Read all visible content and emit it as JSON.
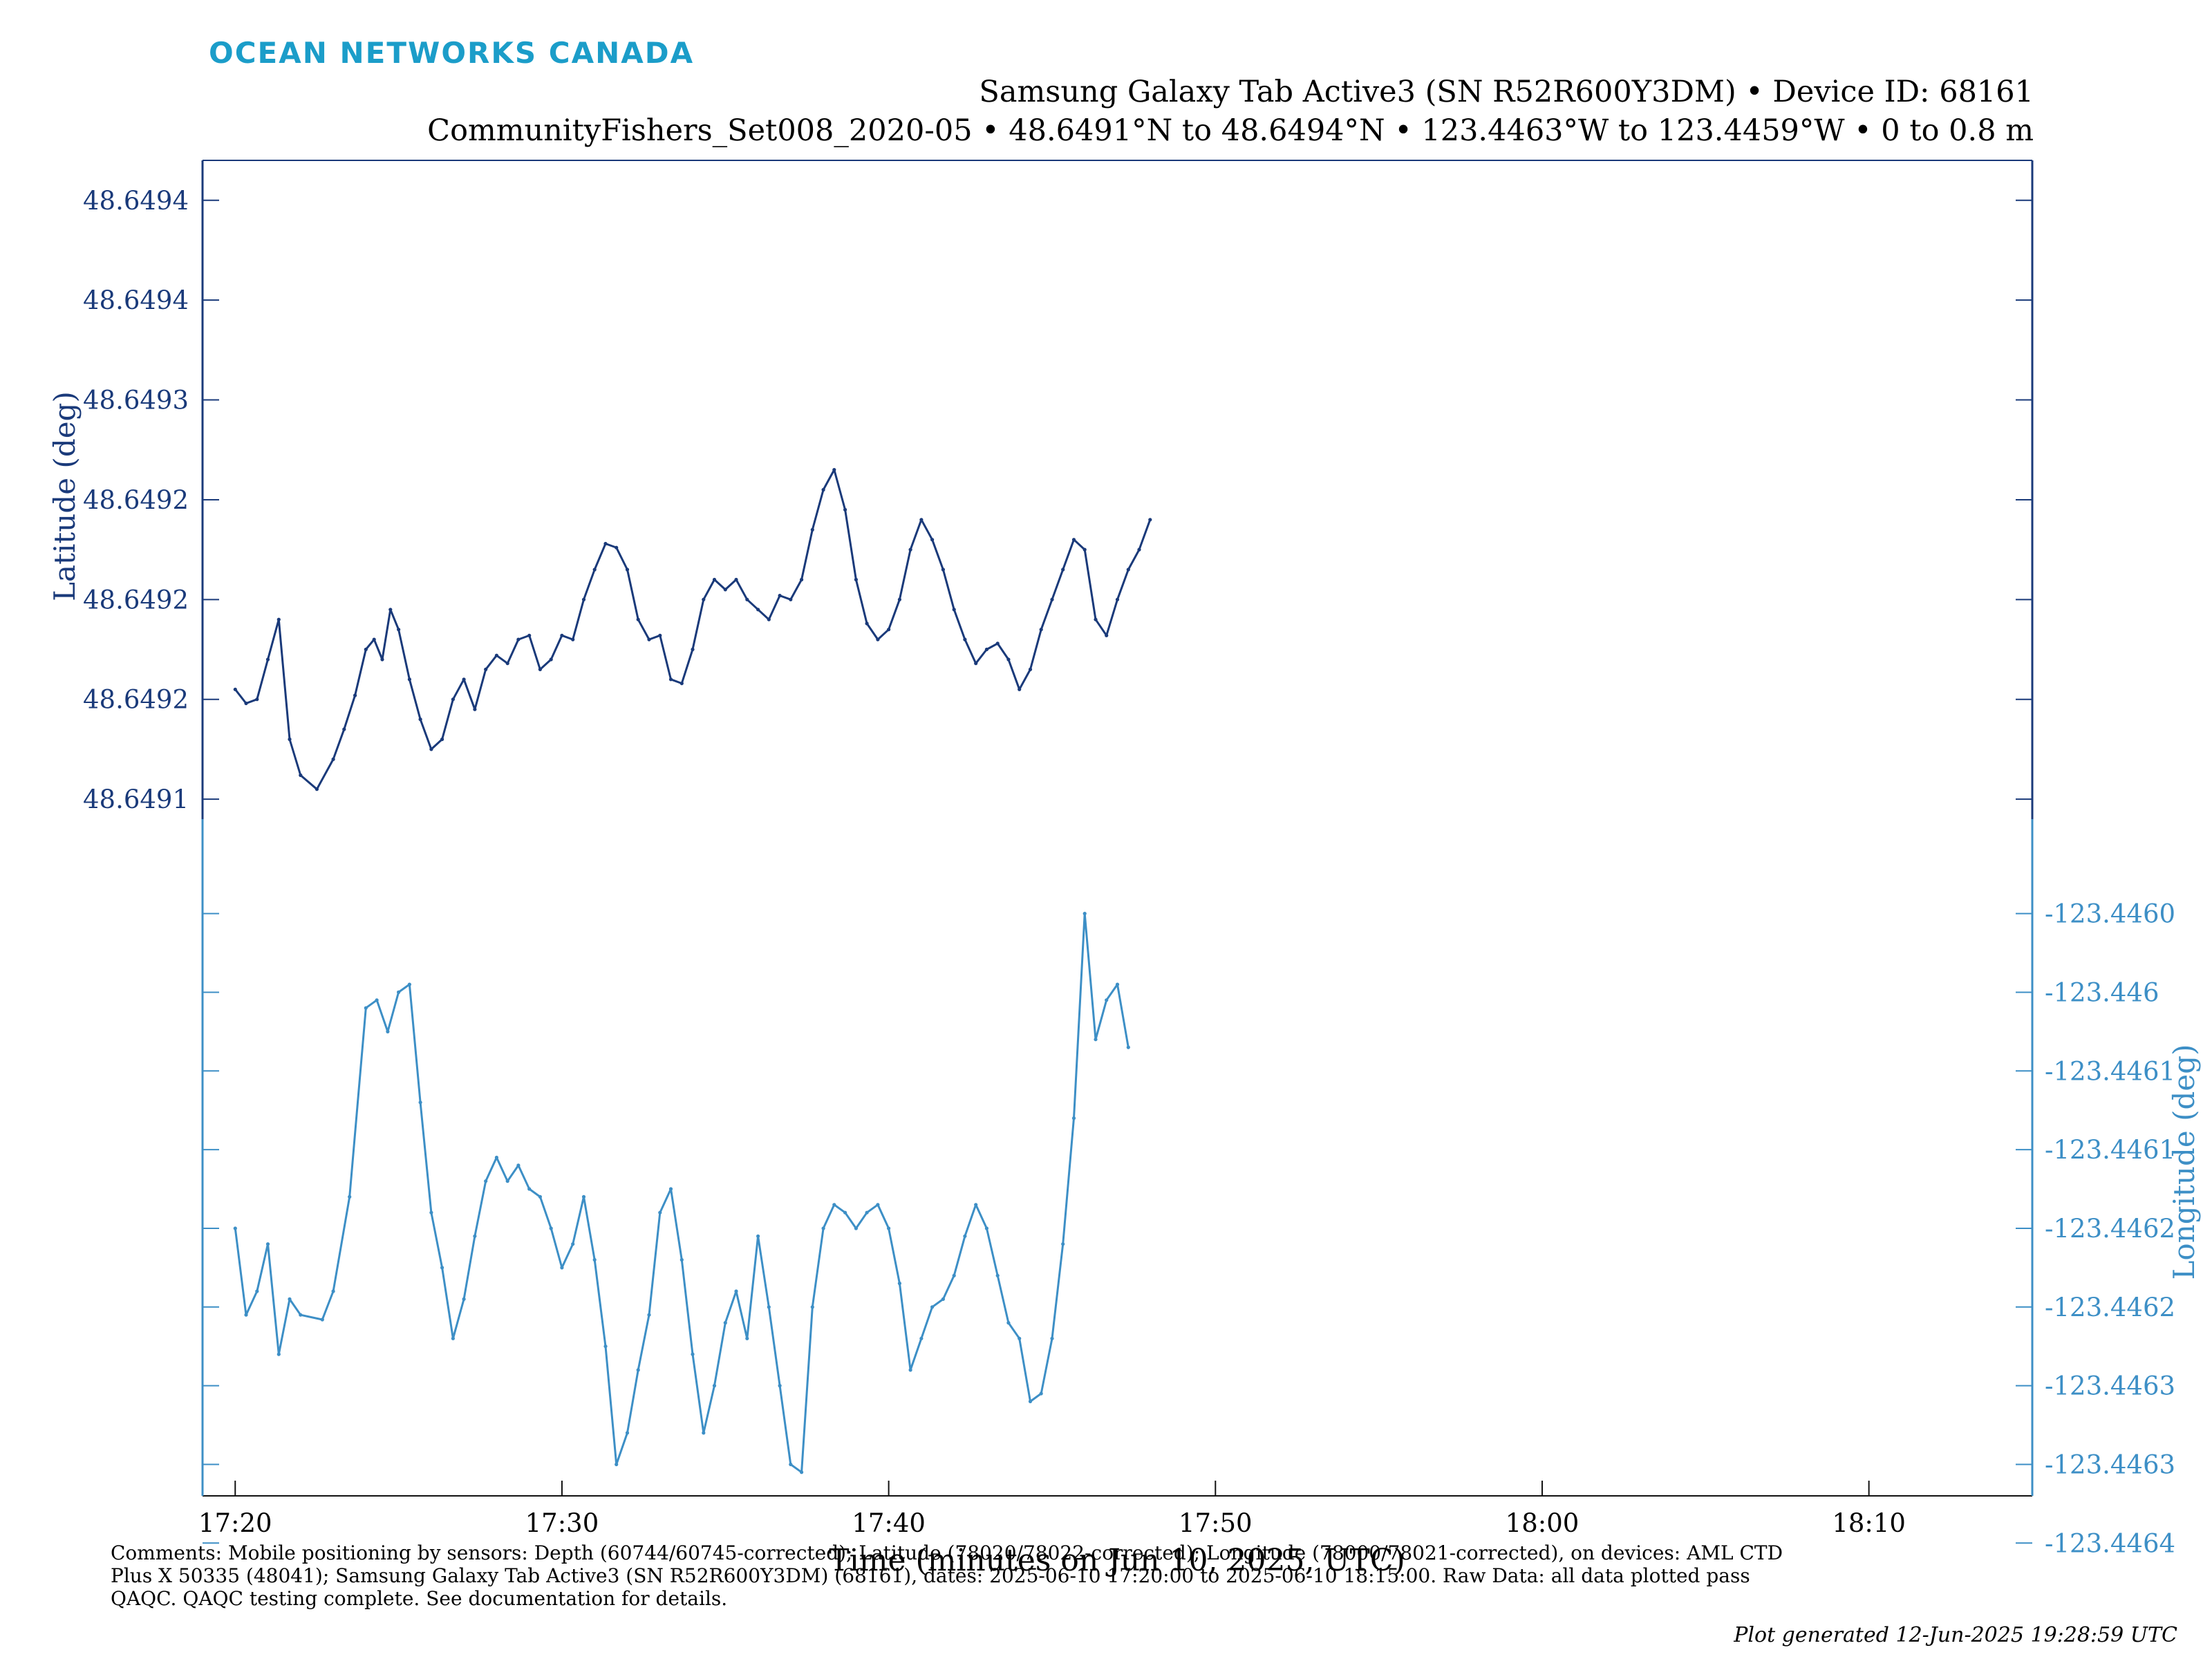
{
  "header": {
    "brand": "OCEAN NETWORKS CANADA",
    "title_line1": "Samsung Galaxy Tab Active3 (SN R52R600Y3DM) • Device ID: 68161",
    "title_line2": "CommunityFishers_Set008_2020-05 • 48.6491°N to 48.6494°N • 123.4463°W to 123.4459°W • 0 to 0.8 m"
  },
  "footer": {
    "comments": "Comments: Mobile positioning by sensors: Depth (60744/60745-corrected); Latitude (78020/78022-corrected); Longitude (78000/78021-corrected), on devices: AML CTD Plus X 50335 (48041); Samsung Galaxy Tab Active3 (SN R52R600Y3DM) (68161), dates: 2025-06-10 17:20:00 to 2025-06-10 18:15:00. Raw Data: all data plotted pass QAQC. QAQC testing complete. See documentation for details.",
    "generated": "Plot generated 12-Jun-2025 19:28:59 UTC"
  },
  "colors": {
    "latitude": "#1a3a7a",
    "longitude": "#3d8fc6",
    "axis": "#111111"
  },
  "chart_data": {
    "type": "line",
    "xlabel": "Time (minutes on Jun 10, 2025, UTC)",
    "xlim": [
      "17:19:00",
      "18:15:00"
    ],
    "x_ticks": [
      {
        "label": "17:20",
        "t": "17:20:00"
      },
      {
        "label": "17:30",
        "t": "17:30:00"
      },
      {
        "label": "17:40",
        "t": "17:40:00"
      },
      {
        "label": "17:50",
        "t": "17:50:00"
      },
      {
        "label": "18:00",
        "t": "18:00:00"
      },
      {
        "label": "18:10",
        "t": "18:10:00"
      }
    ],
    "latitude": {
      "ylabel": "Latitude (deg)",
      "ylim": [
        48.64909,
        48.64942
      ],
      "y_ticks": [
        {
          "label": "48.6491",
          "v": 48.6491
        },
        {
          "label": "48.6492",
          "v": 48.64915
        },
        {
          "label": "48.6492",
          "v": 48.6492
        },
        {
          "label": "48.6492",
          "v": 48.64925
        },
        {
          "label": "48.6493",
          "v": 48.6493
        },
        {
          "label": "48.6494",
          "v": 48.64935
        },
        {
          "label": "48.6494",
          "v": 48.6494
        }
      ],
      "points": [
        [
          "17:20:00",
          48.649155
        ],
        [
          "17:20:20",
          48.649148
        ],
        [
          "17:20:40",
          48.64915
        ],
        [
          "17:21:00",
          48.64917
        ],
        [
          "17:21:20",
          48.64919
        ],
        [
          "17:21:40",
          48.64913
        ],
        [
          "17:22:00",
          48.649112
        ],
        [
          "17:22:30",
          48.649105
        ],
        [
          "17:23:00",
          48.64912
        ],
        [
          "17:23:20",
          48.649135
        ],
        [
          "17:23:40",
          48.649152
        ],
        [
          "17:24:00",
          48.649175
        ],
        [
          "17:24:15",
          48.64918
        ],
        [
          "17:24:30",
          48.64917
        ],
        [
          "17:24:45",
          48.649195
        ],
        [
          "17:25:00",
          48.649185
        ],
        [
          "17:25:20",
          48.64916
        ],
        [
          "17:25:40",
          48.64914
        ],
        [
          "17:26:00",
          48.649125
        ],
        [
          "17:26:20",
          48.64913
        ],
        [
          "17:26:40",
          48.64915
        ],
        [
          "17:27:00",
          48.64916
        ],
        [
          "17:27:20",
          48.649145
        ],
        [
          "17:27:40",
          48.649165
        ],
        [
          "17:28:00",
          48.649172
        ],
        [
          "17:28:20",
          48.649168
        ],
        [
          "17:28:40",
          48.64918
        ],
        [
          "17:29:00",
          48.649182
        ],
        [
          "17:29:20",
          48.649165
        ],
        [
          "17:29:40",
          48.64917
        ],
        [
          "17:30:00",
          48.649182
        ],
        [
          "17:30:20",
          48.64918
        ],
        [
          "17:30:40",
          48.6492
        ],
        [
          "17:31:00",
          48.649215
        ],
        [
          "17:31:20",
          48.649228
        ],
        [
          "17:31:40",
          48.649226
        ],
        [
          "17:32:00",
          48.649215
        ],
        [
          "17:32:20",
          48.64919
        ],
        [
          "17:32:40",
          48.64918
        ],
        [
          "17:33:00",
          48.649182
        ],
        [
          "17:33:20",
          48.64916
        ],
        [
          "17:33:40",
          48.649158
        ],
        [
          "17:34:00",
          48.649175
        ],
        [
          "17:34:20",
          48.6492
        ],
        [
          "17:34:40",
          48.64921
        ],
        [
          "17:35:00",
          48.649205
        ],
        [
          "17:35:20",
          48.64921
        ],
        [
          "17:35:40",
          48.6492
        ],
        [
          "17:36:00",
          48.649195
        ],
        [
          "17:36:20",
          48.64919
        ],
        [
          "17:36:40",
          48.649202
        ],
        [
          "17:37:00",
          48.6492
        ],
        [
          "17:37:20",
          48.64921
        ],
        [
          "17:37:40",
          48.649235
        ],
        [
          "17:38:00",
          48.649255
        ],
        [
          "17:38:20",
          48.649265
        ],
        [
          "17:38:40",
          48.649245
        ],
        [
          "17:39:00",
          48.64921
        ],
        [
          "17:39:20",
          48.649188
        ],
        [
          "17:39:40",
          48.64918
        ],
        [
          "17:40:00",
          48.649185
        ],
        [
          "17:40:20",
          48.6492
        ],
        [
          "17:40:40",
          48.649225
        ],
        [
          "17:41:00",
          48.64924
        ],
        [
          "17:41:20",
          48.64923
        ],
        [
          "17:41:40",
          48.649215
        ],
        [
          "17:42:00",
          48.649195
        ],
        [
          "17:42:20",
          48.64918
        ],
        [
          "17:42:40",
          48.649168
        ],
        [
          "17:43:00",
          48.649175
        ],
        [
          "17:43:20",
          48.649178
        ],
        [
          "17:43:40",
          48.64917
        ],
        [
          "17:44:00",
          48.649155
        ],
        [
          "17:44:20",
          48.649165
        ],
        [
          "17:44:40",
          48.649185
        ],
        [
          "17:45:00",
          48.6492
        ],
        [
          "17:45:20",
          48.649215
        ],
        [
          "17:45:40",
          48.64923
        ],
        [
          "17:46:00",
          48.649225
        ],
        [
          "17:46:20",
          48.64919
        ],
        [
          "17:46:40",
          48.649182
        ],
        [
          "17:47:00",
          48.6492
        ],
        [
          "17:47:20",
          48.649215
        ],
        [
          "17:47:40",
          48.649225
        ],
        [
          "17:48:00",
          48.64924
        ]
      ]
    },
    "longitude": {
      "ylabel": "Longitude (deg)",
      "ylim": [
        -123.44637,
        -123.44594
      ],
      "y_ticks": [
        {
          "label": "-123.4460",
          "v": -123.446
        },
        {
          "label": "-123.446",
          "v": -123.44605
        },
        {
          "label": "-123.4461",
          "v": -123.4461
        },
        {
          "label": "-123.4461",
          "v": -123.44615
        },
        {
          "label": "-123.4462",
          "v": -123.4462
        },
        {
          "label": "-123.4462",
          "v": -123.44625
        },
        {
          "label": "-123.4463",
          "v": -123.4463
        },
        {
          "label": "-123.4463",
          "v": -123.44635
        },
        {
          "label": "-123.4464",
          "v": -123.4464
        }
      ],
      "points": [
        [
          "17:20:00",
          -123.4462
        ],
        [
          "17:20:20",
          -123.446255
        ],
        [
          "17:20:40",
          -123.44624
        ],
        [
          "17:21:00",
          -123.44621
        ],
        [
          "17:21:20",
          -123.44628
        ],
        [
          "17:21:40",
          -123.446245
        ],
        [
          "17:22:00",
          -123.446255
        ],
        [
          "17:22:40",
          -123.446258
        ],
        [
          "17:23:00",
          -123.44624
        ],
        [
          "17:23:30",
          -123.44618
        ],
        [
          "17:24:00",
          -123.44606
        ],
        [
          "17:24:20",
          -123.446055
        ],
        [
          "17:24:40",
          -123.446075
        ],
        [
          "17:25:00",
          -123.44605
        ],
        [
          "17:25:20",
          -123.446045
        ],
        [
          "17:25:40",
          -123.44612
        ],
        [
          "17:26:00",
          -123.44619
        ],
        [
          "17:26:20",
          -123.446225
        ],
        [
          "17:26:40",
          -123.44627
        ],
        [
          "17:27:00",
          -123.446245
        ],
        [
          "17:27:20",
          -123.446205
        ],
        [
          "17:27:40",
          -123.44617
        ],
        [
          "17:28:00",
          -123.446155
        ],
        [
          "17:28:20",
          -123.44617
        ],
        [
          "17:28:40",
          -123.44616
        ],
        [
          "17:29:00",
          -123.446175
        ],
        [
          "17:29:20",
          -123.44618
        ],
        [
          "17:29:40",
          -123.4462
        ],
        [
          "17:30:00",
          -123.446225
        ],
        [
          "17:30:20",
          -123.44621
        ],
        [
          "17:30:40",
          -123.44618
        ],
        [
          "17:31:00",
          -123.44622
        ],
        [
          "17:31:20",
          -123.446275
        ],
        [
          "17:31:40",
          -123.44635
        ],
        [
          "17:32:00",
          -123.44633
        ],
        [
          "17:32:20",
          -123.44629
        ],
        [
          "17:32:40",
          -123.446255
        ],
        [
          "17:33:00",
          -123.44619
        ],
        [
          "17:33:20",
          -123.446175
        ],
        [
          "17:33:40",
          -123.44622
        ],
        [
          "17:34:00",
          -123.44628
        ],
        [
          "17:34:20",
          -123.44633
        ],
        [
          "17:34:40",
          -123.4463
        ],
        [
          "17:35:00",
          -123.44626
        ],
        [
          "17:35:20",
          -123.44624
        ],
        [
          "17:35:40",
          -123.44627
        ],
        [
          "17:36:00",
          -123.446205
        ],
        [
          "17:36:20",
          -123.44625
        ],
        [
          "17:36:40",
          -123.4463
        ],
        [
          "17:37:00",
          -123.44635
        ],
        [
          "17:37:20",
          -123.446355
        ],
        [
          "17:37:40",
          -123.44625
        ],
        [
          "17:38:00",
          -123.4462
        ],
        [
          "17:38:20",
          -123.446185
        ],
        [
          "17:38:40",
          -123.44619
        ],
        [
          "17:39:00",
          -123.4462
        ],
        [
          "17:39:20",
          -123.44619
        ],
        [
          "17:39:40",
          -123.446185
        ],
        [
          "17:40:00",
          -123.4462
        ],
        [
          "17:40:20",
          -123.446235
        ],
        [
          "17:40:40",
          -123.44629
        ],
        [
          "17:41:00",
          -123.44627
        ],
        [
          "17:41:20",
          -123.44625
        ],
        [
          "17:41:40",
          -123.446245
        ],
        [
          "17:42:00",
          -123.44623
        ],
        [
          "17:42:20",
          -123.446205
        ],
        [
          "17:42:40",
          -123.446185
        ],
        [
          "17:43:00",
          -123.4462
        ],
        [
          "17:43:20",
          -123.44623
        ],
        [
          "17:43:40",
          -123.44626
        ],
        [
          "17:44:00",
          -123.44627
        ],
        [
          "17:44:20",
          -123.44631
        ],
        [
          "17:44:40",
          -123.446305
        ],
        [
          "17:45:00",
          -123.44627
        ],
        [
          "17:45:20",
          -123.44621
        ],
        [
          "17:45:40",
          -123.44613
        ],
        [
          "17:46:00",
          -123.446
        ],
        [
          "17:46:20",
          -123.44608
        ],
        [
          "17:46:40",
          -123.446055
        ],
        [
          "17:47:00",
          -123.446045
        ],
        [
          "17:47:20",
          -123.446085
        ]
      ]
    }
  }
}
